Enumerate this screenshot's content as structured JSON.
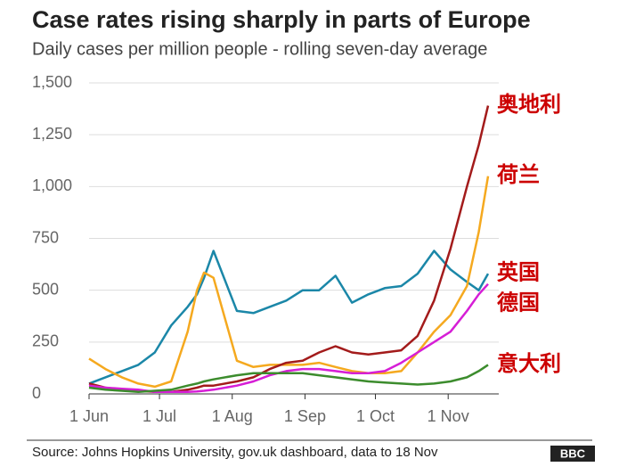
{
  "chart_data": {
    "type": "line",
    "title": "Case rates rising sharply in parts of Europe",
    "subtitle": "Daily cases per million people - rolling seven-day average",
    "source": "Source: Johns Hopkins University, gov.uk dashboard, data to 18 Nov",
    "logo": "BBC",
    "x": [
      "1 Jun",
      "8 Jun",
      "15 Jun",
      "22 Jun",
      "29 Jun",
      "6 Jul",
      "13 Jul",
      "17 Jul",
      "20 Jul",
      "24 Jul",
      "3 Aug",
      "10 Aug",
      "17 Aug",
      "24 Aug",
      "31 Aug",
      "7 Sep",
      "14 Sep",
      "21 Sep",
      "28 Sep",
      "5 Oct",
      "12 Oct",
      "19 Oct",
      "26 Oct",
      "2 Nov",
      "9 Nov",
      "14 Nov",
      "18 Nov"
    ],
    "xlim": [
      "1 Jun",
      "18 Nov"
    ],
    "xticks": [
      "1 Jun",
      "1 Jul",
      "1 Aug",
      "1 Sep",
      "1 Oct",
      "1 Nov"
    ],
    "ylim": [
      0,
      1500
    ],
    "yticks": [
      0,
      250,
      500,
      {
        "value": 750,
        "label": "750"
      },
      {
        "value": 1000,
        "label": "1,000"
      },
      {
        "value": 1250,
        "label": "1,250"
      },
      {
        "value": 1500,
        "label": "1,500"
      }
    ],
    "grid": true,
    "series": [
      {
        "name": "英国",
        "color": "#1b87a8",
        "values": [
          50,
          80,
          110,
          140,
          200,
          330,
          420,
          480,
          560,
          690,
          400,
          390,
          420,
          450,
          500,
          500,
          570,
          440,
          480,
          510,
          520,
          580,
          690,
          600,
          540,
          500,
          580
        ]
      },
      {
        "name": "荷兰",
        "color": "#f5a91f",
        "values": [
          170,
          120,
          80,
          50,
          35,
          60,
          300,
          500,
          585,
          560,
          160,
          130,
          140,
          140,
          140,
          150,
          130,
          110,
          100,
          100,
          110,
          200,
          300,
          380,
          520,
          780,
          1050
        ]
      },
      {
        "name": "奥地利",
        "color": "#a31b1b",
        "values": [
          50,
          30,
          20,
          15,
          10,
          10,
          20,
          30,
          40,
          40,
          60,
          80,
          120,
          150,
          160,
          200,
          230,
          200,
          190,
          200,
          210,
          280,
          450,
          700,
          1000,
          1200,
          1390
        ]
      },
      {
        "name": "德国",
        "color": "#d61ed6",
        "values": [
          40,
          30,
          25,
          20,
          10,
          10,
          10,
          12,
          15,
          20,
          40,
          60,
          90,
          110,
          120,
          120,
          110,
          100,
          100,
          110,
          150,
          200,
          250,
          300,
          400,
          480,
          530
        ]
      },
      {
        "name": "意大利",
        "color": "#3c8c2d",
        "values": [
          30,
          20,
          15,
          10,
          15,
          20,
          40,
          50,
          60,
          70,
          90,
          100,
          100,
          100,
          100,
          90,
          80,
          70,
          60,
          55,
          50,
          45,
          50,
          60,
          80,
          110,
          140
        ]
      }
    ]
  }
}
